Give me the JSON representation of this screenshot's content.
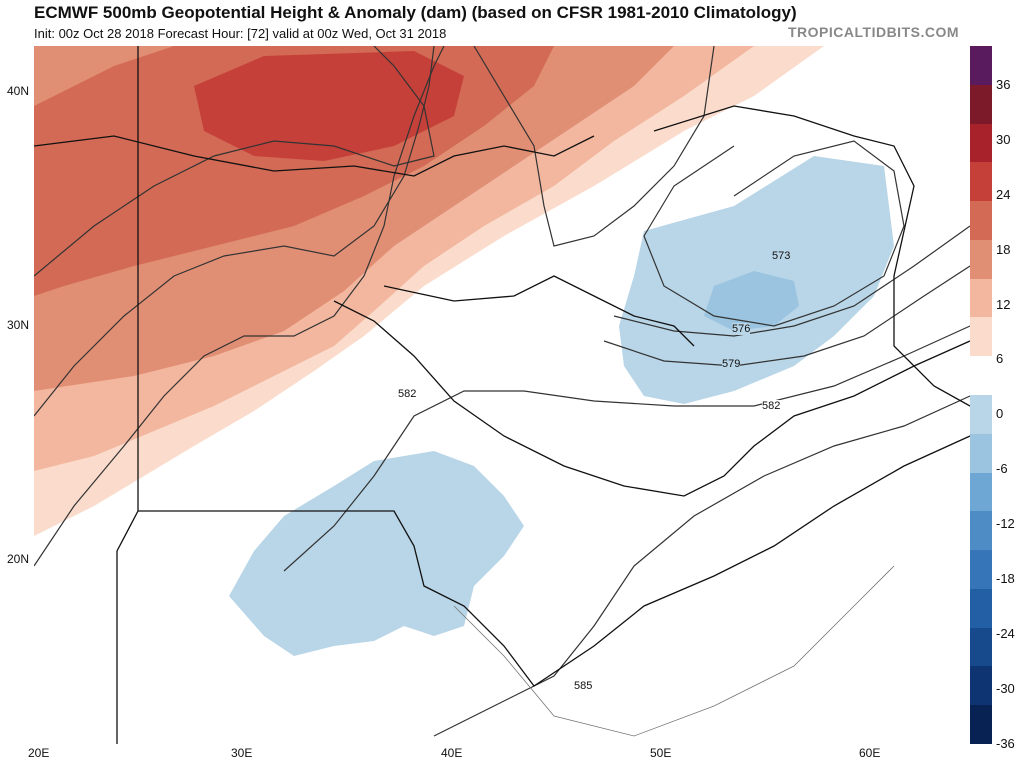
{
  "header": {
    "title": "ECMWF 500mb Geopotential Height & Anomaly (dam) (based on CFSR 1981-2010 Climatology)",
    "subtitle": "Init: 00z Oct 28 2018   Forecast Hour: [72]   valid at 00z Wed, Oct 31 2018",
    "brand": "TROPICALTIDBITS.COM"
  },
  "axes": {
    "lat_labels": [
      "40N",
      "30N",
      "20N"
    ],
    "lon_labels": [
      "20E",
      "30E",
      "40E",
      "50E",
      "60E"
    ]
  },
  "contours": {
    "labels": [
      "573",
      "576",
      "579",
      "582",
      "582",
      "585"
    ]
  },
  "colorbar": {
    "labels": [
      "36",
      "30",
      "24",
      "18",
      "12",
      "6",
      "0",
      "-6",
      "-12",
      "-18",
      "-24",
      "-30",
      "-36"
    ],
    "colors": [
      "#5a1a5e",
      "#7d1a2a",
      "#a8222b",
      "#c6403a",
      "#d26a55",
      "#e18f74",
      "#f3b79f",
      "#fbdccc",
      "#ffffff",
      "#b9d6e8",
      "#9ac4e0",
      "#6fa7d4",
      "#4e8cc5",
      "#3575b8",
      "#235fa5",
      "#174a8d",
      "#0e3572",
      "#072253"
    ]
  }
}
